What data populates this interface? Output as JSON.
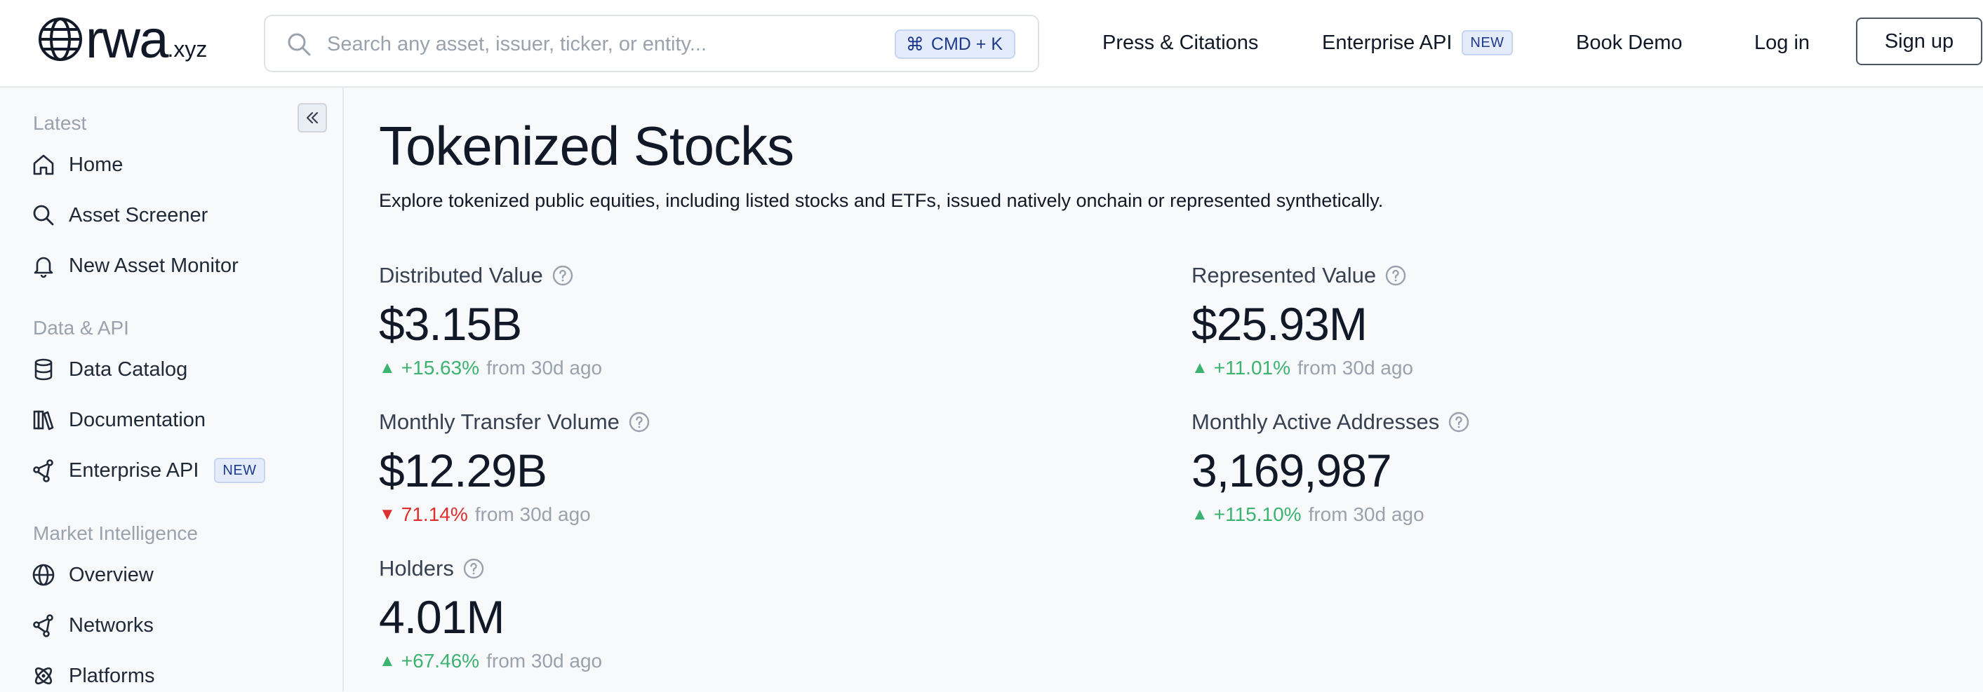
{
  "header": {
    "logo_main": "rwa",
    "logo_suffix": ".xyz",
    "search_placeholder": "Search any asset, issuer, ticker, or entity...",
    "shortcut": "CMD + K",
    "nav": {
      "press": "Press & Citations",
      "api": "Enterprise API",
      "api_badge": "NEW",
      "demo": "Book Demo",
      "login": "Log in",
      "signup": "Sign up"
    }
  },
  "sidebar": {
    "sections": [
      {
        "title": "Latest",
        "items": [
          {
            "label": "Home",
            "icon": "home-icon"
          },
          {
            "label": "Asset Screener",
            "icon": "search-icon"
          },
          {
            "label": "New Asset Monitor",
            "icon": "bell-icon"
          }
        ]
      },
      {
        "title": "Data & API",
        "items": [
          {
            "label": "Data Catalog",
            "icon": "database-icon"
          },
          {
            "label": "Documentation",
            "icon": "books-icon"
          },
          {
            "label": "Enterprise API",
            "icon": "network-icon",
            "badge": "NEW"
          }
        ]
      },
      {
        "title": "Market Intelligence",
        "items": [
          {
            "label": "Overview",
            "icon": "globe-icon"
          },
          {
            "label": "Networks",
            "icon": "network-icon"
          },
          {
            "label": "Platforms",
            "icon": "atom-icon"
          }
        ]
      }
    ]
  },
  "main": {
    "title": "Tokenized Stocks",
    "description": "Explore tokenized public equities, including listed stocks and ETFs, issued natively onchain or represented synthetically.",
    "metrics": {
      "distributed": {
        "label": "Distributed Value",
        "value": "$3.15B",
        "change": "+15.63%",
        "direction": "up",
        "suffix": "from 30d ago"
      },
      "represented": {
        "label": "Represented Value",
        "value": "$25.93M",
        "change": "+11.01%",
        "direction": "up",
        "suffix": "from 30d ago"
      },
      "transfer": {
        "label": "Monthly Transfer Volume",
        "value": "$12.29B",
        "change": "71.14%",
        "direction": "down",
        "suffix": "from 30d ago"
      },
      "addresses": {
        "label": "Monthly Active Addresses",
        "value": "3,169,987",
        "change": "+115.10%",
        "direction": "up",
        "suffix": "from 30d ago"
      },
      "holders": {
        "label": "Holders",
        "value": "4.01M",
        "change": "+67.46%",
        "direction": "up",
        "suffix": "from 30d ago"
      }
    }
  },
  "colors": {
    "up": "#3cb371",
    "down": "#dc2f2f",
    "accent_badge_bg": "#e4ecfb",
    "accent_badge_text": "#1e3a8a"
  }
}
